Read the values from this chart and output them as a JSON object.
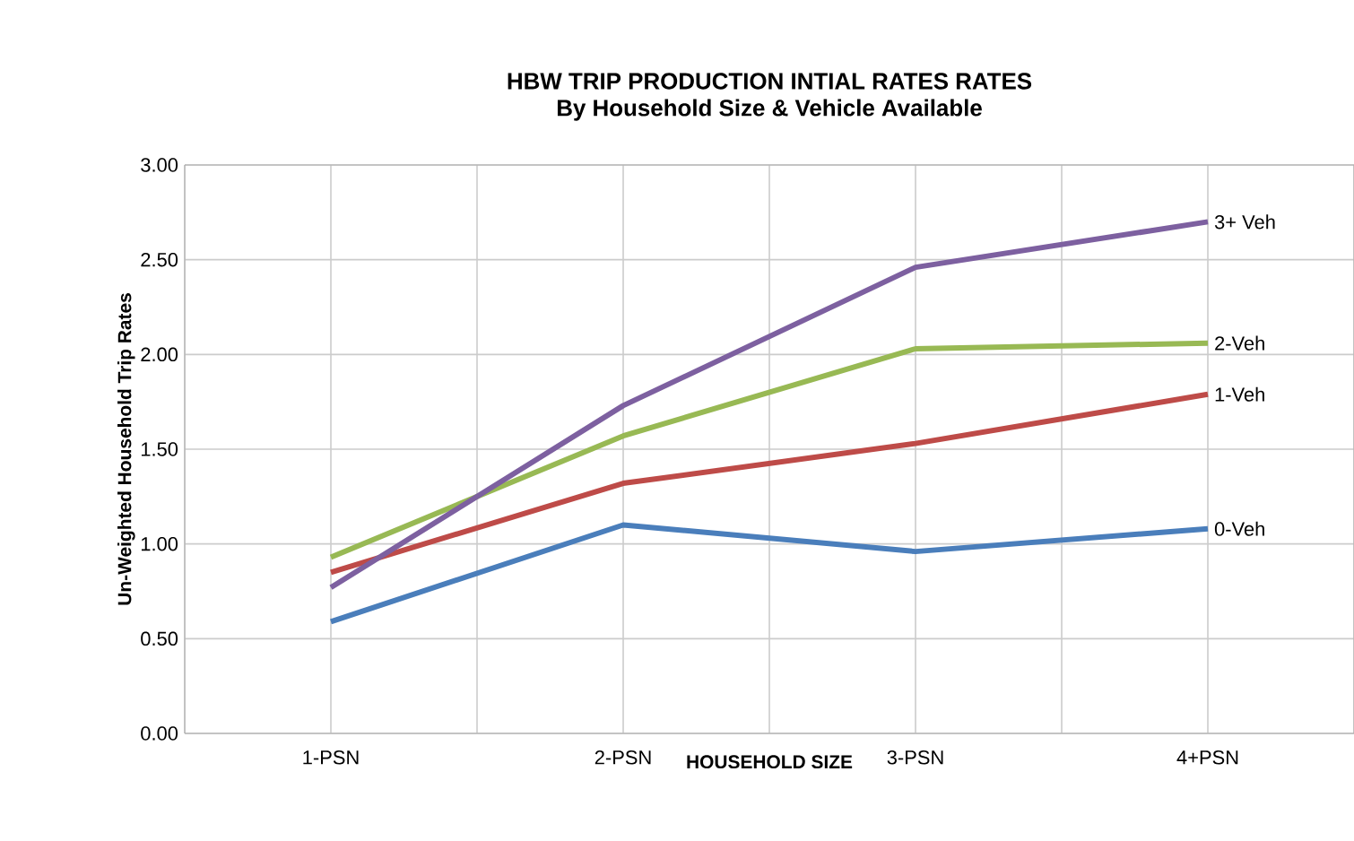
{
  "chart_data": {
    "type": "line",
    "title": "HBW TRIP PRODUCTION INTIAL RATES RATES",
    "subtitle": "By Household Size & Vehicle Available",
    "xlabel": "HOUSEHOLD  SIZE",
    "ylabel": "Un-Weighted Household Trip Rates",
    "categories": [
      "1-PSN",
      "2-PSN",
      "3-PSN",
      "4+PSN"
    ],
    "series": [
      {
        "name": "0-Veh",
        "color": "#4a7ebb",
        "values": [
          0.59,
          1.1,
          0.96,
          1.08
        ]
      },
      {
        "name": "1-Veh",
        "color": "#be4b48",
        "values": [
          0.85,
          1.32,
          1.53,
          1.79
        ]
      },
      {
        "name": "2-Veh",
        "color": "#98b954",
        "values": [
          0.93,
          1.57,
          2.03,
          2.06
        ]
      },
      {
        "name": "3+ Veh",
        "color": "#7d60a0",
        "values": [
          0.77,
          1.73,
          2.46,
          2.7
        ]
      }
    ],
    "ylim": [
      0,
      3
    ],
    "yticks": [
      {
        "value": 0,
        "label": "0.00"
      },
      {
        "value": 0.5,
        "label": "0.50"
      },
      {
        "value": 1,
        "label": "1.00"
      },
      {
        "value": 1.5,
        "label": "1.50"
      },
      {
        "value": 2,
        "label": "2.00"
      },
      {
        "value": 2.5,
        "label": "2.50"
      },
      {
        "value": 3,
        "label": "3.00"
      }
    ],
    "grid": true,
    "legend": false,
    "marker": "none",
    "line_style": "solid"
  }
}
